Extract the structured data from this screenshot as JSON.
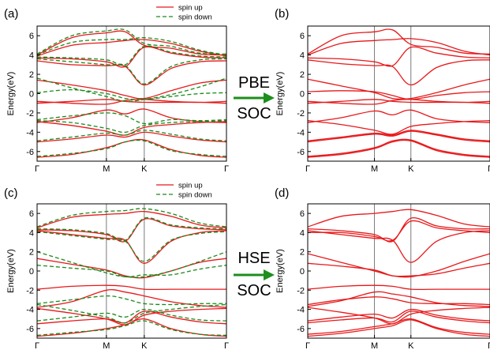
{
  "colors": {
    "spin_up": "#e8191b",
    "spin_down": "#1a8a1a",
    "arrow": "#1e8e1e",
    "axis": "#000000",
    "kline": "#7a7a7a"
  },
  "middle_labels": [
    {
      "top": "PBE",
      "bottom": "SOC"
    },
    {
      "top": "HSE",
      "bottom": "SOC"
    }
  ],
  "chart_data": [
    {
      "panel": "(a)",
      "type": "line",
      "xlabel": "",
      "ylabel": "Energy(eV)",
      "ylim": [
        -7,
        7
      ],
      "yticks": [
        6,
        4,
        2,
        0,
        -2,
        -4,
        -6
      ],
      "kpoints": [
        "Γ",
        "M",
        "K",
        "Γ"
      ],
      "legend": {
        "position": "top-center",
        "entries": [
          "spin up",
          "spin down"
        ]
      },
      "series": [
        {
          "name": "spin up",
          "bands": [
            [
              -6.6,
              -6.3,
              -5.6,
              -5.0,
              -4.8,
              -5.8,
              -6.4,
              -6.6
            ],
            [
              -5.0,
              -4.7,
              -4.3,
              -4.5,
              -4.0,
              -4.4,
              -4.8,
              -5.0
            ],
            [
              -3.0,
              -2.5,
              -1.7,
              -2.1,
              -1.6,
              -2.5,
              -2.9,
              -3.0
            ],
            [
              -2.9,
              -3.3,
              -3.9,
              -4.3,
              -3.5,
              -3.2,
              -3.0,
              -2.9
            ],
            [
              -1.0,
              -0.8,
              -0.6,
              -0.8,
              -0.9,
              -0.9,
              -0.9,
              -1.0
            ],
            [
              -0.8,
              -1.0,
              -1.1,
              -0.7,
              -0.6,
              -0.8,
              -0.9,
              -0.8
            ],
            [
              1.4,
              0.9,
              0.3,
              -0.2,
              -0.5,
              0.3,
              1.1,
              1.4
            ],
            [
              3.4,
              3.0,
              2.9,
              2.8,
              0.9,
              2.6,
              3.3,
              3.4
            ],
            [
              3.7,
              3.6,
              3.3,
              2.8,
              4.8,
              4.2,
              3.8,
              3.7
            ],
            [
              3.9,
              5.0,
              5.3,
              5.5,
              5.6,
              5.2,
              4.4,
              3.9
            ],
            [
              4.0,
              5.8,
              6.3,
              6.4,
              5.0,
              4.7,
              4.1,
              4.0
            ]
          ]
        },
        {
          "name": "spin down",
          "bands": [
            [
              -6.5,
              -6.2,
              -5.7,
              -5.0,
              -4.9,
              -5.9,
              -6.3,
              -6.5
            ],
            [
              -4.9,
              -4.5,
              -4.1,
              -4.3,
              -3.8,
              -4.2,
              -4.7,
              -4.9
            ],
            [
              -2.7,
              -2.3,
              -2.0,
              -2.3,
              -3.1,
              -2.7,
              -2.8,
              -2.7
            ],
            [
              -2.8,
              -3.0,
              -3.6,
              -4.0,
              -3.3,
              -3.0,
              -2.9,
              -2.8
            ],
            [
              1.6,
              0.6,
              -0.3,
              -0.8,
              -0.6,
              -0.1,
              0.7,
              1.6
            ],
            [
              0.1,
              0.4,
              0.0,
              -0.5,
              -0.6,
              -0.3,
              0.0,
              0.1
            ],
            [
              3.6,
              3.3,
              3.0,
              2.9,
              1.0,
              2.8,
              3.5,
              3.6
            ],
            [
              4.0,
              5.3,
              5.6,
              5.6,
              5.8,
              5.4,
              4.5,
              4.0
            ],
            [
              4.1,
              6.0,
              6.5,
              6.6,
              5.2,
              4.9,
              4.2,
              4.1
            ],
            [
              3.8,
              3.7,
              3.5,
              3.0,
              4.9,
              4.3,
              3.9,
              3.8
            ]
          ]
        }
      ]
    },
    {
      "panel": "(b)",
      "type": "line",
      "xlabel": "",
      "ylabel": "Energy(eV)",
      "ylim": [
        -7,
        7
      ],
      "yticks": [
        6,
        4,
        2,
        0,
        -2,
        -4,
        -6
      ],
      "kpoints": [
        "Γ",
        "M",
        "K",
        "Γ"
      ],
      "series": [
        {
          "name": "",
          "bands": [
            [
              -6.6,
              -6.3,
              -5.7,
              -5.0,
              -4.9,
              -5.9,
              -6.4,
              -6.6
            ],
            [
              -6.5,
              -6.2,
              -5.6,
              -4.9,
              -4.8,
              -5.8,
              -6.3,
              -6.5
            ],
            [
              -5.0,
              -4.6,
              -4.2,
              -4.4,
              -3.9,
              -4.3,
              -4.8,
              -5.0
            ],
            [
              -4.9,
              -4.5,
              -4.1,
              -4.3,
              -3.8,
              -4.2,
              -4.7,
              -4.9
            ],
            [
              -3.0,
              -2.5,
              -1.8,
              -2.2,
              -1.7,
              -2.6,
              -2.9,
              -3.0
            ],
            [
              -2.8,
              -3.2,
              -3.8,
              -4.2,
              -3.4,
              -3.1,
              -2.9,
              -2.8
            ],
            [
              -1.0,
              -0.8,
              -0.6,
              -0.8,
              -0.9,
              -0.9,
              -0.9,
              -1.0
            ],
            [
              -0.8,
              -1.0,
              -1.1,
              -0.7,
              -0.6,
              -0.8,
              -0.9,
              -0.8
            ],
            [
              1.5,
              0.8,
              0.1,
              -0.5,
              -0.5,
              0.1,
              0.9,
              1.5
            ],
            [
              0.2,
              0.3,
              0.2,
              -0.2,
              -0.6,
              -0.2,
              0.1,
              0.2
            ],
            [
              3.5,
              3.1,
              2.9,
              2.8,
              0.9,
              2.7,
              3.4,
              3.5
            ],
            [
              3.7,
              3.6,
              3.3,
              2.9,
              4.8,
              4.2,
              3.8,
              3.7
            ],
            [
              4.0,
              5.2,
              5.5,
              5.6,
              5.7,
              5.3,
              4.4,
              4.0
            ],
            [
              4.1,
              6.0,
              6.4,
              6.6,
              5.1,
              4.8,
              4.2,
              4.1
            ]
          ]
        }
      ]
    },
    {
      "panel": "(c)",
      "type": "line",
      "xlabel": "",
      "ylabel": "Energy(eV)",
      "ylim": [
        -7,
        7
      ],
      "yticks": [
        6,
        4,
        2,
        0,
        -2,
        -4,
        -6
      ],
      "kpoints": [
        "Γ",
        "M",
        "K",
        "Γ"
      ],
      "legend": {
        "position": "top-center",
        "entries": [
          "spin up",
          "spin down"
        ]
      },
      "series": [
        {
          "name": "spin up",
          "bands": [
            [
              -6.8,
              -6.5,
              -6.0,
              -5.6,
              -5.0,
              -6.0,
              -6.6,
              -6.8
            ],
            [
              -5.5,
              -5.2,
              -5.0,
              -5.4,
              -4.2,
              -4.8,
              -5.3,
              -5.5
            ],
            [
              -3.8,
              -3.2,
              -2.0,
              -2.2,
              -2.6,
              -3.2,
              -3.6,
              -3.8
            ],
            [
              -3.9,
              -4.4,
              -5.0,
              -5.6,
              -4.6,
              -4.2,
              -4.0,
              -3.9
            ],
            [
              -1.9,
              -1.6,
              -1.5,
              -1.6,
              -1.9,
              -1.9,
              -1.9,
              -1.9
            ],
            [
              1.3,
              0.7,
              0.1,
              -0.5,
              -0.7,
              0.0,
              0.9,
              1.3
            ],
            [
              4.2,
              3.8,
              3.4,
              3.2,
              0.8,
              3.1,
              4.0,
              4.2
            ],
            [
              4.3,
              4.2,
              3.8,
              3.1,
              5.4,
              4.7,
              4.4,
              4.3
            ],
            [
              4.5,
              5.6,
              5.9,
              6.0,
              6.2,
              5.7,
              4.8,
              4.5
            ]
          ]
        },
        {
          "name": "spin down",
          "bands": [
            [
              -6.7,
              -6.4,
              -6.1,
              -5.7,
              -5.2,
              -6.1,
              -6.6,
              -6.7
            ],
            [
              -5.2,
              -4.8,
              -4.4,
              -4.8,
              -4.0,
              -4.6,
              -5.1,
              -5.2
            ],
            [
              -3.4,
              -3.0,
              -2.6,
              -2.9,
              -3.4,
              -3.5,
              -3.4,
              -3.4
            ],
            [
              -3.5,
              -4.1,
              -4.8,
              -5.4,
              -4.4,
              -4.0,
              -3.7,
              -3.5
            ],
            [
              2.0,
              0.9,
              -0.2,
              -0.6,
              -0.6,
              0.0,
              1.0,
              2.0
            ],
            [
              0.6,
              0.3,
              0.0,
              -0.6,
              -0.4,
              -0.4,
              0.2,
              0.6
            ],
            [
              4.1,
              3.7,
              3.3,
              3.1,
              1.0,
              3.2,
              3.9,
              4.1
            ],
            [
              4.6,
              5.8,
              6.2,
              6.3,
              6.5,
              6.0,
              5.0,
              4.6
            ],
            [
              4.4,
              4.3,
              3.9,
              3.2,
              5.5,
              4.8,
              4.5,
              4.4
            ]
          ]
        }
      ]
    },
    {
      "panel": "(d)",
      "type": "line",
      "xlabel": "",
      "ylabel": "Energy(eV)",
      "ylim": [
        -7,
        7
      ],
      "yticks": [
        6,
        4,
        2,
        0,
        -2,
        -4,
        -6
      ],
      "kpoints": [
        "Γ",
        "M",
        "K",
        "Γ"
      ],
      "series": [
        {
          "name": "",
          "bands": [
            [
              -6.8,
              -6.5,
              -6.0,
              -5.7,
              -5.1,
              -6.0,
              -6.6,
              -6.8
            ],
            [
              -6.6,
              -6.3,
              -5.8,
              -5.5,
              -5.0,
              -5.9,
              -6.4,
              -6.6
            ],
            [
              -5.4,
              -5.1,
              -4.9,
              -5.3,
              -4.2,
              -4.8,
              -5.2,
              -5.4
            ],
            [
              -5.2,
              -4.8,
              -4.5,
              -4.9,
              -4.0,
              -4.6,
              -5.0,
              -5.2
            ],
            [
              -3.7,
              -3.1,
              -2.2,
              -2.4,
              -2.7,
              -3.3,
              -3.6,
              -3.7
            ],
            [
              -3.8,
              -4.3,
              -4.9,
              -5.5,
              -4.5,
              -4.1,
              -3.9,
              -3.8
            ],
            [
              -3.5,
              -3.0,
              -2.7,
              -2.9,
              -3.3,
              -3.4,
              -3.4,
              -3.5
            ],
            [
              -1.9,
              -1.6,
              -1.5,
              -1.6,
              -1.9,
              -1.9,
              -1.9,
              -1.9
            ],
            [
              1.8,
              0.9,
              0.0,
              -0.5,
              -0.6,
              0.0,
              1.0,
              1.8
            ],
            [
              0.8,
              0.5,
              0.1,
              -0.5,
              -0.5,
              -0.3,
              0.3,
              0.8
            ],
            [
              4.2,
              3.8,
              3.4,
              3.2,
              0.9,
              3.1,
              4.0,
              4.2
            ],
            [
              4.4,
              4.2,
              3.8,
              3.1,
              5.5,
              4.7,
              4.4,
              4.4
            ],
            [
              4.6,
              5.7,
              6.0,
              6.2,
              6.4,
              5.8,
              4.9,
              4.6
            ],
            [
              4.0,
              4.0,
              3.6,
              3.2,
              5.2,
              4.5,
              4.2,
              4.0
            ]
          ]
        }
      ]
    }
  ]
}
